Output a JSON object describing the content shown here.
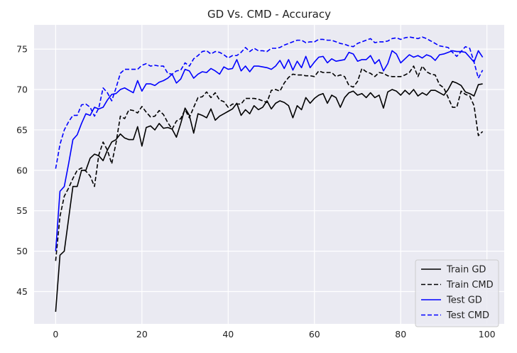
{
  "chart_data": {
    "type": "line",
    "title": "GD Vs. CMD - Accuracy",
    "xlabel": "",
    "ylabel": "",
    "xlim": [
      -5,
      104
    ],
    "ylim": [
      41,
      78
    ],
    "x_ticks": [
      0,
      20,
      40,
      60,
      80,
      100
    ],
    "y_ticks": [
      45,
      50,
      55,
      60,
      65,
      70,
      75
    ],
    "grid": true,
    "legend_position": "lower-right",
    "x": [
      0,
      1,
      2,
      3,
      4,
      5,
      6,
      7,
      8,
      9,
      10,
      11,
      12,
      13,
      14,
      15,
      16,
      17,
      18,
      19,
      20,
      21,
      22,
      23,
      24,
      25,
      26,
      27,
      28,
      29,
      30,
      31,
      32,
      33,
      34,
      35,
      36,
      37,
      38,
      39,
      40,
      41,
      42,
      43,
      44,
      45,
      46,
      47,
      48,
      49,
      50,
      51,
      52,
      53,
      54,
      55,
      56,
      57,
      58,
      59,
      60,
      61,
      62,
      63,
      64,
      65,
      66,
      67,
      68,
      69,
      70,
      71,
      72,
      73,
      74,
      75,
      76,
      77,
      78,
      79,
      80,
      81,
      82,
      83,
      84,
      85,
      86,
      87,
      88,
      89,
      90,
      91,
      92,
      93,
      94,
      95,
      96,
      97,
      98,
      99
    ],
    "series": [
      {
        "name": "Train GD",
        "color": "#000000",
        "dash": "solid",
        "values": [
          42.5,
          49.5,
          50,
          54,
          58,
          58,
          60,
          60,
          61.5,
          62,
          61.8,
          61.2,
          62.5,
          63.5,
          63.8,
          64.5,
          64,
          63.8,
          63.8,
          65.4,
          63,
          65.3,
          65.5,
          65,
          65.8,
          65.2,
          65.3,
          65.1,
          64.1,
          65.8,
          67.7,
          66.8,
          64.6,
          67,
          66.8,
          66.5,
          67.6,
          66.2,
          66.7,
          67,
          67.3,
          67.6,
          68.3,
          66.8,
          67.5,
          67,
          68,
          67.5,
          67.8,
          68.6,
          67.6,
          68.3,
          68.6,
          68.4,
          68,
          66.5,
          68,
          67.5,
          69,
          68.3,
          68.9,
          69.3,
          69.5,
          68.3,
          69.3,
          69,
          67.8,
          69,
          69.6,
          69.8,
          69.3,
          69.5,
          69,
          69.6,
          69,
          69.3,
          67.7,
          69.7,
          70,
          69.8,
          69.3,
          69.9,
          69.4,
          70,
          69.2,
          69.6,
          69.3,
          69.9,
          69.9,
          69.6,
          69.3,
          70,
          71,
          70.8,
          70.5,
          69.7,
          69.5,
          69.2,
          70.6,
          70.7
        ]
      },
      {
        "name": "Train CMD",
        "color": "#000000",
        "dash": "dashed",
        "values": [
          48.8,
          54.3,
          56.8,
          57.8,
          59,
          60,
          60.3,
          59.9,
          59.3,
          58,
          61.9,
          63.5,
          62.5,
          60.8,
          63.4,
          66.7,
          66.4,
          67.5,
          67.4,
          67.1,
          67.9,
          67.2,
          66.6,
          66.7,
          67.4,
          66.9,
          65.9,
          65.1,
          66.1,
          66.4,
          67.5,
          66.5,
          67.8,
          69,
          69.1,
          69.7,
          69,
          69.6,
          68.7,
          68.5,
          67.8,
          68.2,
          68.2,
          68.2,
          68.9,
          68.9,
          68.9,
          68.8,
          68.6,
          68.4,
          69.9,
          70,
          69.8,
          70.8,
          71.5,
          71.9,
          71.8,
          71.8,
          71.7,
          71.7,
          71.6,
          72.3,
          72.1,
          72.1,
          72.1,
          71.6,
          71.8,
          71.6,
          70.5,
          70.3,
          71,
          72.6,
          72.2,
          72,
          71.6,
          72.1,
          72,
          71.7,
          71.6,
          71.6,
          71.6,
          71.8,
          72.1,
          72.9,
          71.6,
          72.9,
          72.2,
          71.9,
          71.8,
          70.6,
          70.2,
          69,
          67.8,
          67.8,
          69.8,
          69.4,
          69.2,
          68,
          64.3,
          64.8
        ]
      },
      {
        "name": "Test GD",
        "color": "#0000ff",
        "dash": "solid",
        "values": [
          50,
          57.4,
          58,
          60.8,
          63.8,
          64.4,
          65.8,
          67,
          66.8,
          67.8,
          67.6,
          67.8,
          68.7,
          69.4,
          69.5,
          70,
          70.2,
          69.9,
          69.6,
          71.1,
          69.8,
          70.7,
          70.7,
          70.5,
          70.9,
          71.1,
          71.4,
          71.9,
          70.8,
          71.3,
          72.5,
          72.3,
          71.4,
          71.9,
          72.2,
          72.1,
          72.6,
          72.3,
          71.9,
          72.8,
          72.5,
          72.6,
          73.7,
          72.3,
          72.9,
          72.2,
          72.9,
          72.9,
          72.8,
          72.7,
          72.5,
          72.9,
          73.6,
          72.6,
          73.7,
          72.4,
          73.5,
          72.7,
          74.1,
          72.7,
          73.4,
          74,
          74.1,
          73.3,
          73.8,
          73.5,
          73.6,
          73.7,
          74.6,
          74.4,
          73.5,
          73.7,
          73.7,
          74.2,
          73.2,
          73.7,
          72.3,
          73.2,
          74.8,
          74.4,
          73.3,
          73.8,
          74.3,
          74,
          74.2,
          73.9,
          74.3,
          74.1,
          73.6,
          74.3,
          74.4,
          74.6,
          74.8,
          74.7,
          74.7,
          74.6,
          74,
          73.4,
          74.8,
          74
        ]
      },
      {
        "name": "Test CMD",
        "color": "#0000ff",
        "dash": "dashed",
        "values": [
          60.2,
          63.2,
          65,
          66,
          66.8,
          66.8,
          68.1,
          68.2,
          67.8,
          66.7,
          67.7,
          70.2,
          69.6,
          68.6,
          70.2,
          72,
          72.5,
          72.5,
          72.5,
          72.5,
          73,
          73.2,
          72.9,
          73,
          72.9,
          72.9,
          72,
          71.9,
          72.3,
          72.4,
          73.3,
          72.9,
          73.8,
          74.2,
          74.7,
          74.8,
          74.4,
          74.7,
          74.6,
          74.3,
          73.9,
          74.2,
          74.2,
          74.6,
          75.2,
          74.7,
          75.1,
          74.8,
          74.8,
          74.7,
          75.1,
          75.1,
          75.2,
          75.5,
          75.7,
          75.9,
          76.1,
          76.1,
          75.8,
          75.9,
          75.9,
          76.2,
          76.2,
          76.1,
          76.1,
          75.9,
          75.7,
          75.6,
          75.4,
          75.3,
          75.7,
          75.9,
          76.1,
          76.3,
          75.8,
          75.9,
          75.9,
          76,
          76.3,
          76.4,
          76.2,
          76.4,
          76.5,
          76.4,
          76.3,
          76.5,
          76.3,
          76,
          75.7,
          75.4,
          75.3,
          75.2,
          74.6,
          74.1,
          74.7,
          75.3,
          75.1,
          73.4,
          71.4,
          72.4
        ]
      }
    ]
  }
}
